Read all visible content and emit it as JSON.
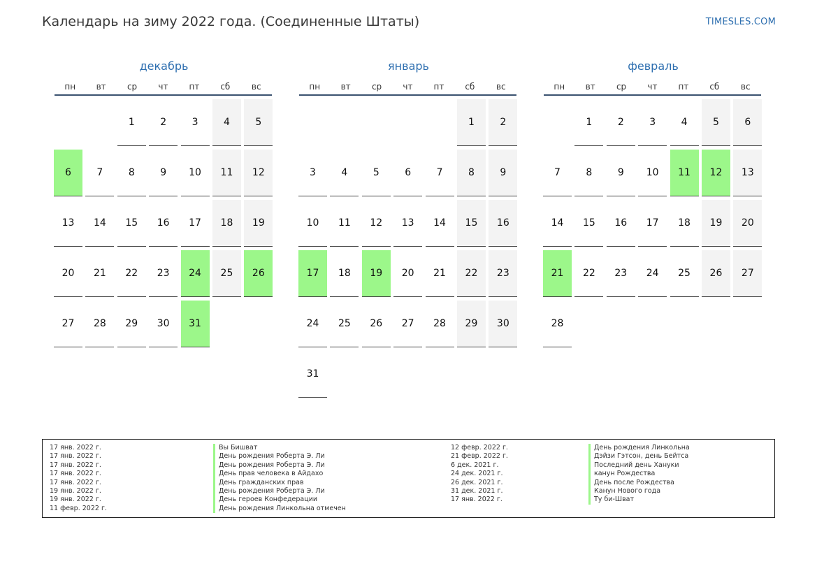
{
  "header": {
    "title": "Календарь на зиму 2022 года. (Соединенные Штаты)",
    "brand": "TIMESLES.COM"
  },
  "colors": {
    "holiday": "#9cf78a",
    "weekend": "#f3f3f3",
    "month_title": "#2e6fb0",
    "rule": "#3b5270"
  },
  "weekdays": [
    "пн",
    "вт",
    "ср",
    "чт",
    "пт",
    "сб",
    "вс"
  ],
  "months": [
    {
      "name": "декабрь",
      "offset": 2,
      "days": 31,
      "holidays": [
        6,
        24,
        26,
        31
      ]
    },
    {
      "name": "январь",
      "offset": 5,
      "days": 31,
      "holidays": [
        17,
        19
      ]
    },
    {
      "name": "февраль",
      "offset": 1,
      "days": 28,
      "holidays": [
        11,
        12,
        21
      ]
    }
  ],
  "legend": {
    "left": [
      {
        "date": "17 янв. 2022 г.",
        "name": "Вы Бишват"
      },
      {
        "date": "17 янв. 2022 г.",
        "name": "День рождения Роберта Э. Ли"
      },
      {
        "date": "17 янв. 2022 г.",
        "name": "День рождения Роберта Э. Ли"
      },
      {
        "date": "17 янв. 2022 г.",
        "name": "День прав человека в Айдахо"
      },
      {
        "date": "17 янв. 2022 г.",
        "name": "День гражданских прав"
      },
      {
        "date": "19 янв. 2022 г.",
        "name": "День рождения Роберта Э. Ли"
      },
      {
        "date": "19 янв. 2022 г.",
        "name": "День героев Конфедерации"
      },
      {
        "date": "11 февр. 2022 г.",
        "name": "День рождения Линкольна отмечен"
      }
    ],
    "right": [
      {
        "date": "12 февр. 2022 г.",
        "name": "День рождения Линкольна"
      },
      {
        "date": "21 февр. 2022 г.",
        "name": "Дэйзи Гэтсон, день Бейтса"
      },
      {
        "date": "6 дек. 2021 г.",
        "name": "Последний день Хануки"
      },
      {
        "date": "24 дек. 2021 г.",
        "name": "канун Рождества"
      },
      {
        "date": "26 дек. 2021 г.",
        "name": "День после Рождества"
      },
      {
        "date": "31 дек. 2021 г.",
        "name": "Канун Нового года"
      },
      {
        "date": "17 янв. 2022 г.",
        "name": "Ту би-Шват"
      }
    ]
  }
}
